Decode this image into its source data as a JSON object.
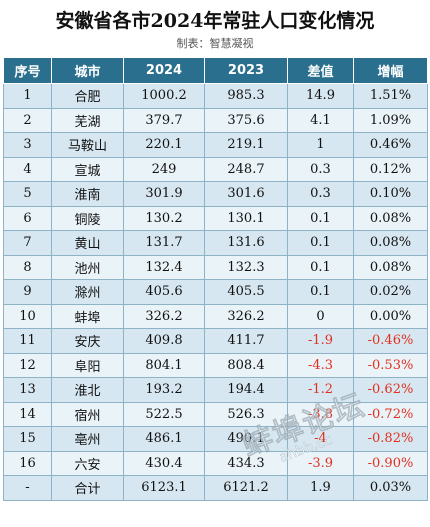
{
  "header": {
    "title": "安徽省各市2024年常驻人口变化情况",
    "subtitle": "制表：智慧凝视"
  },
  "chart_data": {
    "type": "table",
    "columns": [
      "序号",
      "城市",
      "2024",
      "2023",
      "差值",
      "增幅"
    ],
    "rows": [
      [
        "1",
        "合肥",
        "1000.2",
        "985.3",
        "14.9",
        "1.51%"
      ],
      [
        "2",
        "芜湖",
        "379.7",
        "375.6",
        "4.1",
        "1.09%"
      ],
      [
        "3",
        "马鞍山",
        "220.1",
        "219.1",
        "1",
        "0.46%"
      ],
      [
        "4",
        "宣城",
        "249",
        "248.7",
        "0.3",
        "0.12%"
      ],
      [
        "5",
        "淮南",
        "301.9",
        "301.6",
        "0.3",
        "0.10%"
      ],
      [
        "6",
        "铜陵",
        "130.2",
        "130.1",
        "0.1",
        "0.08%"
      ],
      [
        "7",
        "黄山",
        "131.7",
        "131.6",
        "0.1",
        "0.08%"
      ],
      [
        "8",
        "池州",
        "132.4",
        "132.3",
        "0.1",
        "0.08%"
      ],
      [
        "9",
        "滁州",
        "405.6",
        "405.5",
        "0.1",
        "0.02%"
      ],
      [
        "10",
        "蚌埠",
        "326.2",
        "326.2",
        "0",
        "0.00%"
      ],
      [
        "11",
        "安庆",
        "409.8",
        "411.7",
        "-1.9",
        "-0.46%"
      ],
      [
        "12",
        "阜阳",
        "804.1",
        "808.4",
        "-4.3",
        "-0.53%"
      ],
      [
        "13",
        "淮北",
        "193.2",
        "194.4",
        "-1.2",
        "-0.62%"
      ],
      [
        "14",
        "宿州",
        "522.5",
        "526.3",
        "-3.8",
        "-0.72%"
      ],
      [
        "15",
        "亳州",
        "486.1",
        "490.1",
        "-4",
        "-0.82%"
      ],
      [
        "16",
        "六安",
        "430.4",
        "434.3",
        "-3.9",
        "-0.90%"
      ]
    ],
    "total": [
      "-",
      "合计",
      "6123.1",
      "6121.2",
      "1.9",
      "0.03%"
    ],
    "colors": {
      "header_bg": "#2b6f8e",
      "row_bg": "#d7e7f1",
      "negative": "#e0301e"
    }
  },
  "watermark": {
    "text": "蚌埠论坛",
    "url": "ahbb.cc"
  }
}
